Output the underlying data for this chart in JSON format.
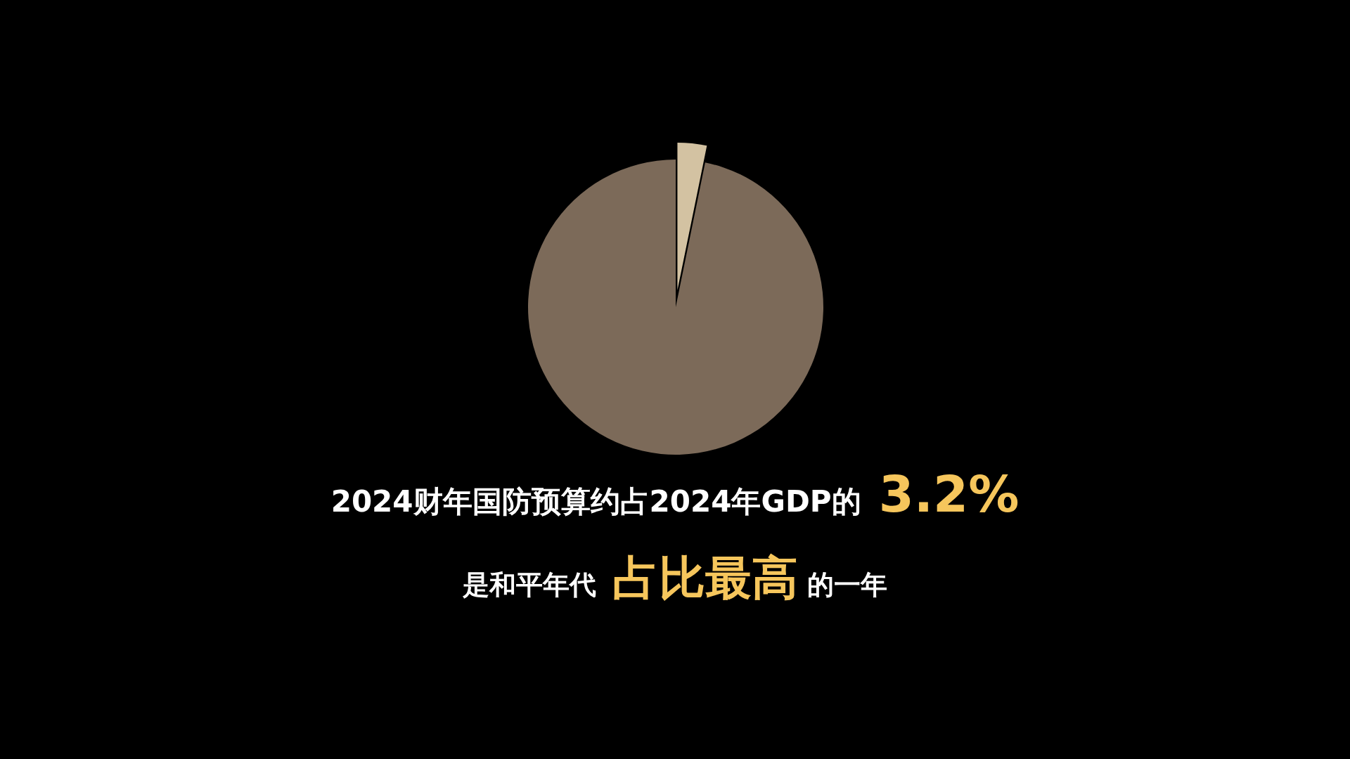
{
  "chart_data": {
    "type": "pie",
    "title": "2024财年国防预算约占2024年GDP的 3.2%",
    "subtitle": "是和平年代 占比最高 的一年",
    "categories": [
      null,
      null
    ],
    "values": [
      3.2,
      96.8
    ],
    "colors": [
      "#d3c2a2",
      "#7c6a59"
    ]
  }
}
